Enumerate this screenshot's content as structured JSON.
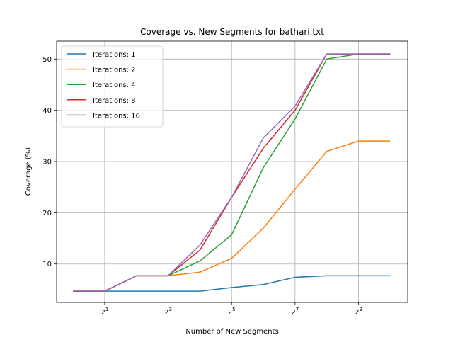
{
  "chart_data": {
    "type": "line",
    "title": "Coverage vs. New Segments for bathari.txt",
    "xlabel": "Number of New Segments",
    "ylabel": "Coverage (%)",
    "x_scale": "log2",
    "x": [
      1,
      2,
      4,
      8,
      16,
      32,
      64,
      128,
      256,
      512,
      1024
    ],
    "xticks": [
      {
        "value": 2,
        "base": "2",
        "exp": "1"
      },
      {
        "value": 8,
        "base": "2",
        "exp": "3"
      },
      {
        "value": 32,
        "base": "2",
        "exp": "5"
      },
      {
        "value": 128,
        "base": "2",
        "exp": "7"
      },
      {
        "value": 512,
        "base": "2",
        "exp": "9"
      }
    ],
    "xlim": [
      0.7,
      1500
    ],
    "ylim": [
      2.5,
      53.5
    ],
    "yticks": [
      10,
      20,
      30,
      40,
      50
    ],
    "grid": true,
    "legend_position": "top-left",
    "series": [
      {
        "name": "Iterations: 1",
        "color": "#1f77b4",
        "values": [
          4.7,
          4.7,
          4.7,
          4.7,
          4.7,
          5.4,
          6.0,
          7.4,
          7.7,
          7.7,
          7.7
        ]
      },
      {
        "name": "Iterations: 2",
        "color": "#ff7f0e",
        "values": [
          4.7,
          4.7,
          7.7,
          7.7,
          8.4,
          11.1,
          17.0,
          24.6,
          32.0,
          34.0,
          34.0
        ]
      },
      {
        "name": "Iterations: 4",
        "color": "#2ca02c",
        "values": [
          4.7,
          4.7,
          7.7,
          7.7,
          10.6,
          15.7,
          28.8,
          38.3,
          50.0,
          51.0,
          51.0
        ]
      },
      {
        "name": "Iterations: 8",
        "color": "#d62728",
        "values": [
          4.7,
          4.7,
          7.7,
          7.7,
          12.7,
          23.0,
          32.6,
          40.0,
          51.0,
          51.0,
          51.0
        ]
      },
      {
        "name": "Iterations: 16",
        "color": "#9467bd",
        "values": [
          4.7,
          4.7,
          7.7,
          7.7,
          13.7,
          23.0,
          34.6,
          40.8,
          51.0,
          51.0,
          51.0
        ]
      }
    ]
  }
}
